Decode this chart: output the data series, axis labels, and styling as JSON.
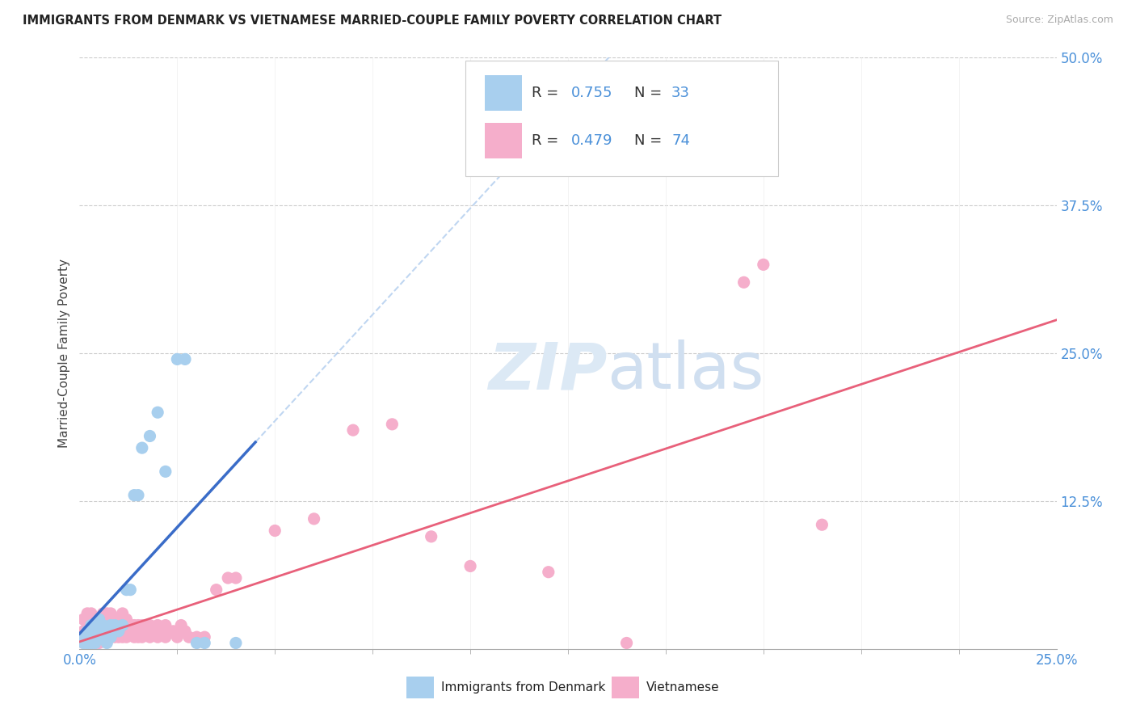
{
  "title": "IMMIGRANTS FROM DENMARK VS VIETNAMESE MARRIED-COUPLE FAMILY POVERTY CORRELATION CHART",
  "source": "Source: ZipAtlas.com",
  "ylabel_label": "Married-Couple Family Poverty",
  "legend_label_1": "Immigrants from Denmark",
  "legend_label_2": "Vietnamese",
  "color_denmark": "#A8CFEE",
  "color_vietnamese": "#F5AECB",
  "color_line_denmark": "#3A6CC8",
  "color_line_vietnamese": "#E8607A",
  "color_axis_blue": "#4A90D9",
  "background_color": "#FFFFFF",
  "xlim": [
    0.0,
    0.25
  ],
  "ylim": [
    0.0,
    0.5
  ],
  "dk_x": [
    0.001,
    0.001,
    0.002,
    0.002,
    0.003,
    0.003,
    0.003,
    0.004,
    0.004,
    0.005,
    0.005,
    0.006,
    0.006,
    0.007,
    0.007,
    0.008,
    0.008,
    0.009,
    0.01,
    0.011,
    0.012,
    0.013,
    0.014,
    0.015,
    0.016,
    0.018,
    0.02,
    0.022,
    0.025,
    0.027,
    0.03,
    0.032,
    0.04
  ],
  "dk_y": [
    0.005,
    0.01,
    0.005,
    0.015,
    0.005,
    0.01,
    0.02,
    0.005,
    0.01,
    0.015,
    0.025,
    0.01,
    0.02,
    0.005,
    0.015,
    0.01,
    0.02,
    0.02,
    0.015,
    0.02,
    0.05,
    0.05,
    0.13,
    0.13,
    0.17,
    0.18,
    0.2,
    0.15,
    0.245,
    0.245,
    0.005,
    0.005,
    0.005
  ],
  "vn_x": [
    0.001,
    0.001,
    0.001,
    0.001,
    0.002,
    0.002,
    0.002,
    0.002,
    0.003,
    0.003,
    0.003,
    0.003,
    0.004,
    0.004,
    0.004,
    0.005,
    0.005,
    0.005,
    0.006,
    0.006,
    0.006,
    0.007,
    0.007,
    0.007,
    0.008,
    0.008,
    0.008,
    0.009,
    0.009,
    0.01,
    0.01,
    0.011,
    0.011,
    0.012,
    0.012,
    0.013,
    0.013,
    0.014,
    0.014,
    0.015,
    0.015,
    0.016,
    0.016,
    0.017,
    0.018,
    0.018,
    0.019,
    0.02,
    0.02,
    0.021,
    0.022,
    0.022,
    0.023,
    0.024,
    0.025,
    0.026,
    0.027,
    0.028,
    0.03,
    0.032,
    0.035,
    0.038,
    0.04,
    0.05,
    0.06,
    0.07,
    0.08,
    0.09,
    0.1,
    0.12,
    0.14,
    0.17,
    0.175,
    0.19
  ],
  "vn_y": [
    0.005,
    0.01,
    0.015,
    0.025,
    0.005,
    0.01,
    0.02,
    0.03,
    0.005,
    0.01,
    0.02,
    0.03,
    0.005,
    0.015,
    0.025,
    0.005,
    0.015,
    0.025,
    0.01,
    0.02,
    0.03,
    0.01,
    0.02,
    0.03,
    0.01,
    0.02,
    0.03,
    0.01,
    0.025,
    0.01,
    0.025,
    0.01,
    0.03,
    0.01,
    0.025,
    0.015,
    0.02,
    0.01,
    0.02,
    0.01,
    0.02,
    0.01,
    0.02,
    0.015,
    0.01,
    0.02,
    0.015,
    0.01,
    0.02,
    0.015,
    0.01,
    0.02,
    0.015,
    0.015,
    0.01,
    0.02,
    0.015,
    0.01,
    0.01,
    0.01,
    0.05,
    0.06,
    0.06,
    0.1,
    0.11,
    0.185,
    0.19,
    0.095,
    0.07,
    0.065,
    0.005,
    0.31,
    0.325,
    0.105
  ],
  "dk_line_x0": 0.0,
  "dk_line_x1": 0.045,
  "vn_line_x0": 0.0,
  "vn_line_x1": 0.25,
  "dash_line_x0": 0.045,
  "dash_line_x1": 0.22
}
